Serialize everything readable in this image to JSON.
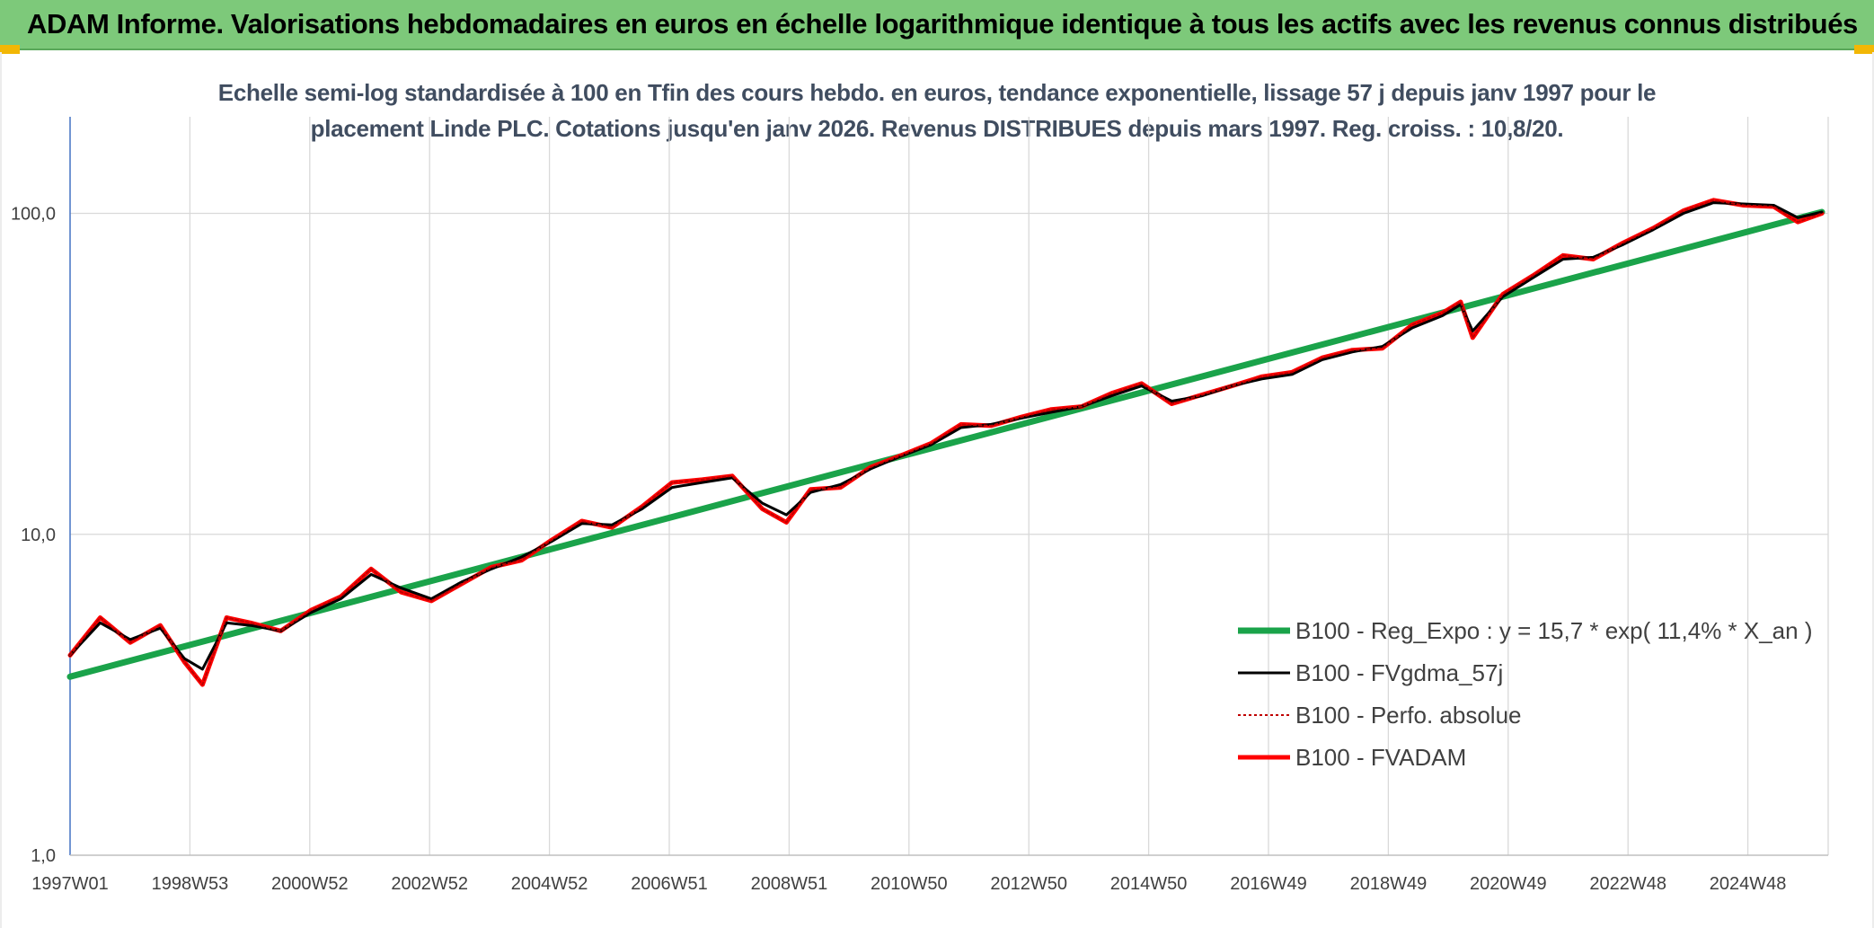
{
  "banner": {
    "title": "ADAM Informe. Valorisations hebdomadaires en euros en échelle logarithmique identique à tous les actifs avec les revenus connus distribués"
  },
  "colors": {
    "banner_bg": "#7dc97a",
    "regression": "#1aa34a",
    "gdma": "#000000",
    "perfo": "#c00000",
    "fvadam": "#ff0000",
    "axis": "#4472c4",
    "grid": "#d9d9d9"
  },
  "chart_data": {
    "type": "line",
    "title_lines": [
      "Echelle semi-log standardisée à 100 en Tfin des cours hebdo. en euros, tendance exponentielle, lissage 57 j depuis janv 1997 pour le",
      "placement Linde PLC. Cotations jusqu'en janv 2026. Revenus DISTRIBUES depuis mars 1997. Reg. croiss. : 10,8/20."
    ],
    "x_tick_labels": [
      "1997W01",
      "1998W53",
      "2000W52",
      "2002W52",
      "2004W52",
      "2006W51",
      "2008W51",
      "2010W50",
      "2012W50",
      "2014W50",
      "2016W49",
      "2018W49",
      "2020W49",
      "2022W48",
      "2024W48"
    ],
    "x_range": [
      1997.0,
      2026.1
    ],
    "y_scale": "log",
    "y_range": [
      1,
      200
    ],
    "y_ticks": [
      1,
      10,
      100
    ],
    "y_tick_labels": [
      "1,0",
      "10,0",
      "100,0"
    ],
    "grid": true,
    "legend_position": "right",
    "series": [
      {
        "name": "B100 - Reg_Expo : y = 15,7 * exp( 11,4% *  X_an )",
        "style": "regression",
        "x": [
          1997.0,
          2026.1
        ],
        "values": [
          3.6,
          101
        ]
      },
      {
        "name": "B100 - FVgdma_57j",
        "style": "gdma",
        "x": [
          1997.0,
          1997.5,
          1998.0,
          1998.5,
          1998.9,
          1999.2,
          1999.6,
          2000.0,
          2000.5,
          2001.0,
          2001.5,
          2002.0,
          2002.5,
          2003.0,
          2003.5,
          2004.0,
          2004.5,
          2005.0,
          2005.5,
          2006.0,
          2006.5,
          2007.0,
          2007.5,
          2008.0,
          2008.5,
          2008.9,
          2009.3,
          2009.8,
          2010.3,
          2010.8,
          2011.3,
          2011.8,
          2012.3,
          2012.8,
          2013.3,
          2013.8,
          2014.3,
          2014.8,
          2015.3,
          2015.8,
          2016.3,
          2016.8,
          2017.3,
          2017.8,
          2018.3,
          2018.8,
          2019.3,
          2019.8,
          2020.1,
          2020.3,
          2020.8,
          2021.3,
          2021.8,
          2022.3,
          2022.8,
          2023.3,
          2023.8,
          2024.3,
          2024.8,
          2025.3,
          2025.7,
          2026.1
        ],
        "values": [
          4.2,
          5.3,
          4.7,
          5.1,
          4.1,
          3.8,
          5.3,
          5.2,
          5.0,
          5.7,
          6.3,
          7.5,
          6.8,
          6.3,
          7.1,
          7.8,
          8.5,
          9.5,
          10.8,
          10.7,
          12.0,
          14.0,
          14.5,
          15.0,
          12.5,
          11.5,
          13.5,
          14.3,
          16.0,
          17.5,
          19.0,
          21.5,
          22.0,
          23.0,
          24.0,
          25.0,
          27.0,
          29.0,
          26.0,
          27.0,
          29.0,
          30.5,
          31.5,
          35.0,
          37.0,
          38.5,
          44.0,
          48.0,
          52.0,
          43.0,
          55.0,
          63.0,
          72.0,
          73.0,
          80.0,
          89.0,
          100.0,
          108.0,
          107.0,
          106.0,
          97.0,
          101.0
        ]
      },
      {
        "name": "B100 - Perfo. absolue",
        "style": "perfo",
        "x": [
          1997.0,
          1997.5,
          1998.0,
          1998.5,
          1998.9,
          1999.2,
          1999.6,
          2000.0,
          2000.5,
          2001.0,
          2001.5,
          2002.0,
          2002.5,
          2003.0,
          2003.5,
          2004.0,
          2004.5,
          2005.0,
          2005.5,
          2006.0,
          2006.5,
          2007.0,
          2007.5,
          2008.0,
          2008.5,
          2008.9,
          2009.3,
          2009.8,
          2010.3,
          2010.8,
          2011.3,
          2011.8,
          2012.3,
          2012.8,
          2013.3,
          2013.8,
          2014.3,
          2014.8,
          2015.3,
          2015.8,
          2016.3,
          2016.8,
          2017.3,
          2017.8,
          2018.3,
          2018.8,
          2019.3,
          2019.8,
          2020.1,
          2020.3,
          2020.8,
          2021.3,
          2021.8,
          2022.3,
          2022.8,
          2023.3,
          2023.8,
          2024.3,
          2024.8,
          2025.3,
          2025.7,
          2026.1
        ],
        "values": [
          4.2,
          5.5,
          4.6,
          5.2,
          4.0,
          3.4,
          5.5,
          5.3,
          5.0,
          5.8,
          6.4,
          7.8,
          6.6,
          6.2,
          7.0,
          7.9,
          8.3,
          9.6,
          11.0,
          10.5,
          12.2,
          14.5,
          14.8,
          15.2,
          12.0,
          10.9,
          13.8,
          14.0,
          16.2,
          17.6,
          19.2,
          22.0,
          21.8,
          23.2,
          24.5,
          25.0,
          27.5,
          29.5,
          25.5,
          27.2,
          29.0,
          31.0,
          32.0,
          35.5,
          37.5,
          38.0,
          45.0,
          49.0,
          53.0,
          41.0,
          56.0,
          64.0,
          74.0,
          72.0,
          81.0,
          90.0,
          102.0,
          110.0,
          106.0,
          105.0,
          94.0,
          100.0
        ]
      },
      {
        "name": "B100 - FVADAM",
        "style": "fvadam",
        "x": [
          1997.0,
          1997.5,
          1998.0,
          1998.5,
          1998.9,
          1999.2,
          1999.6,
          2000.0,
          2000.5,
          2001.0,
          2001.5,
          2002.0,
          2002.5,
          2003.0,
          2003.5,
          2004.0,
          2004.5,
          2005.0,
          2005.5,
          2006.0,
          2006.5,
          2007.0,
          2007.5,
          2008.0,
          2008.5,
          2008.9,
          2009.3,
          2009.8,
          2010.3,
          2010.8,
          2011.3,
          2011.8,
          2012.3,
          2012.8,
          2013.3,
          2013.8,
          2014.3,
          2014.8,
          2015.3,
          2015.8,
          2016.3,
          2016.8,
          2017.3,
          2017.8,
          2018.3,
          2018.8,
          2019.3,
          2019.8,
          2020.1,
          2020.3,
          2020.8,
          2021.3,
          2021.8,
          2022.3,
          2022.8,
          2023.3,
          2023.8,
          2024.3,
          2024.8,
          2025.3,
          2025.7,
          2026.1
        ],
        "values": [
          4.2,
          5.5,
          4.6,
          5.2,
          4.0,
          3.4,
          5.5,
          5.3,
          5.0,
          5.8,
          6.4,
          7.8,
          6.6,
          6.2,
          7.0,
          7.9,
          8.3,
          9.6,
          11.0,
          10.5,
          12.2,
          14.5,
          14.8,
          15.2,
          12.0,
          10.9,
          13.8,
          14.0,
          16.2,
          17.6,
          19.2,
          22.0,
          21.8,
          23.2,
          24.5,
          25.0,
          27.5,
          29.5,
          25.5,
          27.2,
          29.0,
          31.0,
          32.0,
          35.5,
          37.5,
          38.0,
          45.0,
          49.0,
          53.0,
          41.0,
          56.0,
          64.0,
          74.0,
          72.0,
          81.0,
          90.0,
          102.0,
          110.0,
          106.0,
          105.0,
          94.0,
          100.0
        ]
      }
    ]
  }
}
